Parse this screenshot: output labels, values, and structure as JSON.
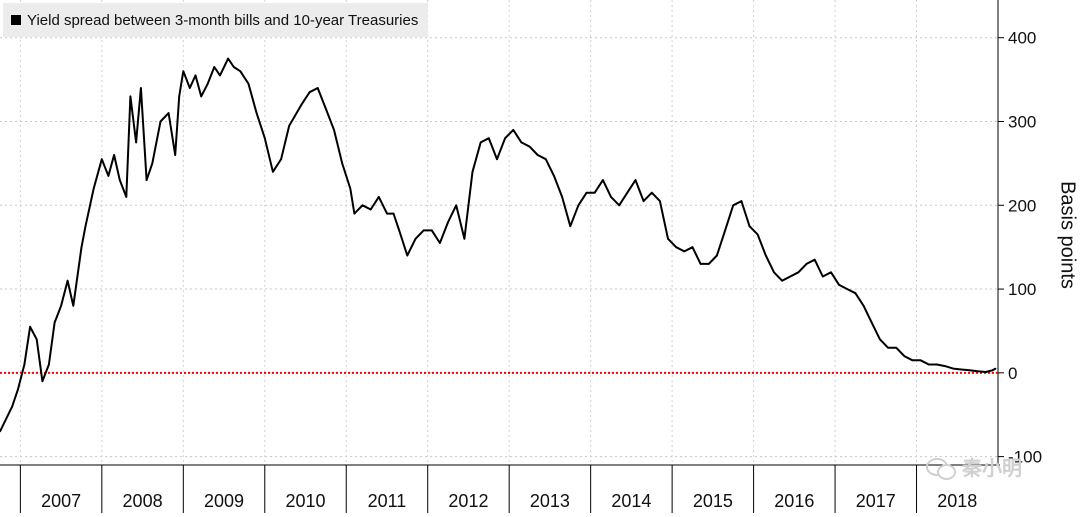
{
  "chart_data": {
    "type": "line",
    "title": "Yield spread between 3-month bills and 10-year Treasuries",
    "ylabel": "Basis points",
    "ylim": [
      -110,
      445
    ],
    "xlim": [
      2006.75,
      2019.0
    ],
    "yticks": [
      400,
      300,
      200,
      100,
      0,
      -100
    ],
    "ytick_labels": [
      "400",
      "300",
      "200",
      "100",
      "0",
      "-100"
    ],
    "xticks": [
      {
        "label": "2007",
        "start": 2007.0
      },
      {
        "label": "2008",
        "start": 2008.0
      },
      {
        "label": "2009",
        "start": 2009.0
      },
      {
        "label": "2010",
        "start": 2010.0
      },
      {
        "label": "2011",
        "start": 2011.0
      },
      {
        "label": "2012",
        "start": 2012.0
      },
      {
        "label": "2013",
        "start": 2013.0
      },
      {
        "label": "2014",
        "start": 2014.0
      },
      {
        "label": "2015",
        "start": 2015.0
      },
      {
        "label": "2016",
        "start": 2016.0
      },
      {
        "label": "2017",
        "start": 2017.0
      },
      {
        "label": "2018",
        "start": 2018.0
      }
    ],
    "grid": true,
    "legend": "top-left",
    "reference_line": {
      "y": 0,
      "color": "#ff0000",
      "style": "dotted"
    },
    "series": [
      {
        "color": "#000000",
        "x": [
          2006.75,
          2006.9,
          2006.97,
          2007.05,
          2007.12,
          2007.2,
          2007.27,
          2007.35,
          2007.42,
          2007.5,
          2007.58,
          2007.65,
          2007.75,
          2007.8,
          2007.9,
          2008.0,
          2008.08,
          2008.15,
          2008.22,
          2008.3,
          2008.35,
          2008.42,
          2008.48,
          2008.55,
          2008.62,
          2008.72,
          2008.82,
          2008.9,
          2008.95,
          2009.0,
          2009.08,
          2009.15,
          2009.22,
          2009.3,
          2009.38,
          2009.45,
          2009.55,
          2009.62,
          2009.7,
          2009.8,
          2009.9,
          2010.0,
          2010.1,
          2010.2,
          2010.3,
          2010.45,
          2010.55,
          2010.65,
          2010.75,
          2010.85,
          2010.95,
          2011.05,
          2011.1,
          2011.2,
          2011.3,
          2011.4,
          2011.5,
          2011.58,
          2011.65,
          2011.75,
          2011.85,
          2011.95,
          2012.05,
          2012.15,
          2012.25,
          2012.35,
          2012.45,
          2012.55,
          2012.65,
          2012.75,
          2012.85,
          2012.95,
          2013.05,
          2013.15,
          2013.25,
          2013.35,
          2013.45,
          2013.55,
          2013.65,
          2013.75,
          2013.85,
          2013.95,
          2014.05,
          2014.15,
          2014.25,
          2014.35,
          2014.45,
          2014.55,
          2014.65,
          2014.75,
          2014.85,
          2014.95,
          2015.05,
          2015.15,
          2015.25,
          2015.35,
          2015.45,
          2015.55,
          2015.65,
          2015.75,
          2015.85,
          2015.95,
          2016.05,
          2016.15,
          2016.25,
          2016.35,
          2016.45,
          2016.55,
          2016.65,
          2016.75,
          2016.85,
          2016.95,
          2017.05,
          2017.15,
          2017.25,
          2017.35,
          2017.45,
          2017.55,
          2017.65,
          2017.75,
          2017.85,
          2017.95,
          2018.05,
          2018.15,
          2018.25,
          2018.35,
          2018.45,
          2018.55,
          2018.65,
          2018.75,
          2018.85,
          2018.93,
          2018.97
        ],
        "values": [
          -70,
          -40,
          -20,
          10,
          55,
          40,
          -10,
          10,
          60,
          80,
          110,
          80,
          150,
          175,
          220,
          255,
          235,
          260,
          230,
          210,
          330,
          275,
          340,
          230,
          250,
          300,
          310,
          260,
          330,
          360,
          340,
          355,
          330,
          345,
          365,
          355,
          375,
          365,
          360,
          345,
          310,
          280,
          240,
          255,
          295,
          320,
          335,
          340,
          315,
          290,
          250,
          220,
          190,
          200,
          195,
          210,
          190,
          190,
          170,
          140,
          160,
          170,
          170,
          155,
          180,
          200,
          160,
          240,
          275,
          280,
          255,
          280,
          290,
          275,
          270,
          260,
          255,
          235,
          210,
          175,
          200,
          215,
          215,
          230,
          210,
          200,
          215,
          230,
          205,
          215,
          205,
          160,
          150,
          145,
          150,
          130,
          130,
          140,
          170,
          200,
          205,
          175,
          165,
          140,
          120,
          110,
          115,
          120,
          130,
          135,
          115,
          120,
          105,
          100,
          95,
          80,
          60,
          40,
          30,
          30,
          20,
          15,
          15,
          10,
          10,
          8,
          5,
          4,
          3,
          2,
          1,
          3,
          5
        ]
      }
    ]
  },
  "watermark": {
    "text": "秦小明",
    "icon": "wechat-icon"
  }
}
